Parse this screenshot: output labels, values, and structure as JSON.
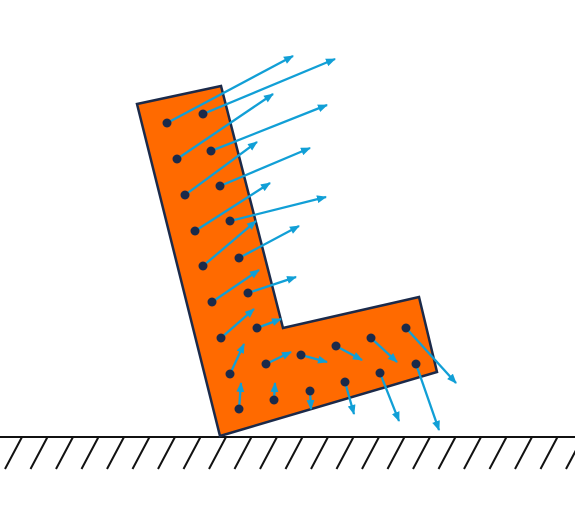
{
  "colors": {
    "background": "#ffffff",
    "body_fill": "#ff6a00",
    "body_outline": "#1b2a4a",
    "point": "#1b2a4a",
    "arrow": "#119fd6",
    "ground": "#111111"
  },
  "icons": {
    "ground": "hatched-ground-icon",
    "arrow": "velocity-arrow-icon",
    "point": "material-point-icon"
  }
}
